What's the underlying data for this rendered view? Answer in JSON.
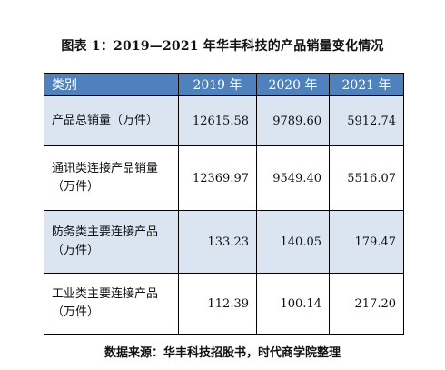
{
  "title": "图表 1：2019—2021 年华丰科技的产品销量变化情况",
  "table": {
    "headers": [
      "类别",
      "2019 年",
      "2020 年",
      "2021 年"
    ],
    "rows": [
      {
        "label_line1": "产品总销量（万件）",
        "label_line2": "",
        "values": [
          "12615.58",
          "9789.60",
          "5912.74"
        ]
      },
      {
        "label_line1": "通讯类连接产品销量",
        "label_line2": "（万件）",
        "values": [
          "12369.97",
          "9549.40",
          "5516.07"
        ]
      },
      {
        "label_line1": "防务类主要连接产品",
        "label_line2": "（万件）",
        "values": [
          "133.23",
          "140.05",
          "179.47"
        ]
      },
      {
        "label_line1": "工业类主要连接产品",
        "label_line2": "（万件）",
        "values": [
          "112.39",
          "100.14",
          "217.20"
        ]
      }
    ]
  },
  "source": "数据来源：华丰科技招股书，时代商学院整理",
  "colors": {
    "header_bg": "#4f81bd",
    "row_shade": "#dbe5f1"
  }
}
